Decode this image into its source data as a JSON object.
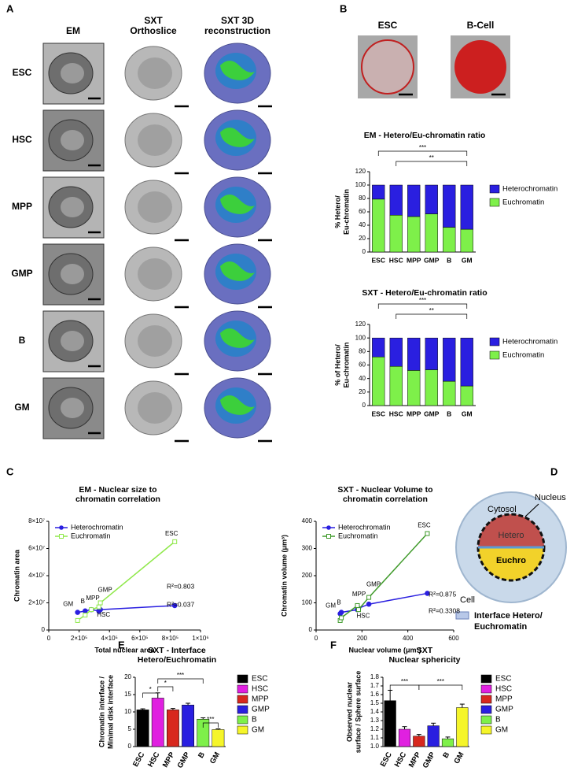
{
  "panels": [
    "A",
    "B",
    "C",
    "D",
    "E",
    "F"
  ],
  "panel_a": {
    "columns": [
      [
        "EM"
      ],
      [
        "SXT",
        "Orthoslice"
      ],
      [
        "SXT 3D",
        "reconstruction"
      ]
    ],
    "rows": [
      "ESC",
      "HSC",
      "MPP",
      "GMP",
      "B",
      "GM"
    ]
  },
  "panel_b_images": [
    "ESC",
    "B-Cell"
  ],
  "diagram": {
    "cytosol": "Cytosol",
    "nucleus": "Nucleus",
    "hetero": "Hetero",
    "euchro": "Euchro",
    "cell": "Cell",
    "interface": [
      "Interface Hetero/",
      "Euchromatin"
    ]
  },
  "chart_data": [
    {
      "type": "stacked_bar",
      "title": [
        "EM - Hetero/Eu-chromatin ratio"
      ],
      "y_label": [
        "% Hetero/",
        "Eu-chromatin"
      ],
      "categories": [
        "ESC",
        "HSC",
        "MPP",
        "GMP",
        "B",
        "GM"
      ],
      "series": [
        {
          "name": "Heterochromatin",
          "color": "#2a1fe0",
          "values": [
            21,
            45,
            47,
            43,
            63,
            66
          ]
        },
        {
          "name": "Euchromatin",
          "color": "#7ef04a",
          "values": [
            79,
            55,
            53,
            57,
            37,
            34
          ]
        }
      ],
      "ylim": [
        0,
        120
      ],
      "yticks": [
        0,
        20,
        40,
        60,
        80,
        100,
        120
      ],
      "annotations": [
        "***",
        "**"
      ]
    },
    {
      "type": "stacked_bar",
      "title": [
        "SXT - Hetero/Eu-chromatin ratio"
      ],
      "y_label": [
        "% of Hetero/",
        "Eu-chromatin"
      ],
      "categories": [
        "ESC",
        "HSC",
        "MPP",
        "GMP",
        "B",
        "GM"
      ],
      "series": [
        {
          "name": "Heterochromatin",
          "color": "#2a1fe0",
          "values": [
            28,
            42,
            48,
            47,
            64,
            71
          ]
        },
        {
          "name": "Euchromatin",
          "color": "#7ef04a",
          "values": [
            72,
            58,
            52,
            53,
            36,
            29
          ]
        }
      ],
      "ylim": [
        0,
        120
      ],
      "yticks": [
        0,
        20,
        40,
        60,
        80,
        100,
        120
      ],
      "annotations": [
        "***",
        "**"
      ]
    },
    {
      "type": "scatter",
      "title": [
        "EM - Nuclear size to",
        "chromatin correlation"
      ],
      "x_label": [
        "Total nuclear area"
      ],
      "y_label": [
        "Chromatin area"
      ],
      "categories": [
        "GM",
        "B",
        "MPP",
        "HSC",
        "GMP",
        "ESC"
      ],
      "series": [
        {
          "name": "Heterochromatin",
          "color": "#2a1fe0",
          "marker": "circle",
          "x": [
            190000,
            240000,
            280000,
            330000,
            340000,
            830000
          ],
          "values": [
            13000000,
            14000000,
            15000000,
            14000000,
            15000000,
            18000000
          ]
        },
        {
          "name": "Euchromatin",
          "color": "#8fe84a",
          "marker": "square",
          "x": [
            190000,
            240000,
            280000,
            330000,
            340000,
            830000
          ],
          "values": [
            7000000,
            11000000,
            15000000,
            17000000,
            20000000,
            65000000
          ]
        }
      ],
      "xlim": [
        0,
        1000000
      ],
      "xticks": [
        0,
        {
          "value": 200000,
          "label": "2×10⁵"
        },
        {
          "value": 400000,
          "label": "4×10⁵"
        },
        {
          "value": 600000,
          "label": "6×10⁵"
        },
        {
          "value": 800000,
          "label": "8×10⁵"
        },
        {
          "value": 1000000,
          "label": "1×10⁶"
        }
      ],
      "ylim": [
        0,
        80000000
      ],
      "yticks": [
        0,
        {
          "value": 20000000,
          "label": "2×10⁷"
        },
        {
          "value": 40000000,
          "label": "4×10⁷"
        },
        {
          "value": 60000000,
          "label": "6×10⁷"
        },
        {
          "value": 80000000,
          "label": "8×10⁷"
        }
      ],
      "annotations": [
        "R²=0.803",
        "R²=0.037"
      ]
    },
    {
      "type": "scatter",
      "title": [
        "SXT - Nuclear Volume to",
        "chromatin correlation"
      ],
      "x_label": [
        "Nuclear volume (μm³)"
      ],
      "y_label": [
        "Chromatin volume (μm³)"
      ],
      "categories": [
        "GM",
        "B",
        "MPP",
        "HSC",
        "GMP",
        "ESC"
      ],
      "series": [
        {
          "name": "Heterochromatin",
          "color": "#2a1fe0",
          "marker": "circle",
          "x": [
            105,
            110,
            180,
            185,
            230,
            485
          ],
          "values": [
            60,
            65,
            75,
            80,
            95,
            135
          ]
        },
        {
          "name": "Euchromatin",
          "color": "#3f9a2a",
          "marker": "square",
          "x": [
            105,
            110,
            180,
            185,
            230,
            485
          ],
          "values": [
            35,
            45,
            90,
            75,
            120,
            355
          ]
        }
      ],
      "xlim": [
        0,
        600
      ],
      "xticks": [
        0,
        200,
        400,
        600
      ],
      "ylim": [
        0,
        400
      ],
      "yticks": [
        0,
        100,
        200,
        300,
        400
      ],
      "annotations": [
        "R²=0.875",
        "R²=0.3308"
      ]
    },
    {
      "type": "bar",
      "title": [
        "SXT - Interface",
        "Hetero/Euchromatin"
      ],
      "y_label": [
        "Chromatin interface /",
        "Minimal disk interface"
      ],
      "categories": [
        "ESC",
        "HSC",
        "MPP",
        "GMP",
        "B",
        "GM"
      ],
      "colors": [
        "#000000",
        "#e020e0",
        "#d8281e",
        "#2a1fe0",
        "#7ef04a",
        "#f5f52a"
      ],
      "values": [
        10.6,
        14,
        10.6,
        12,
        7.9,
        4.9
      ],
      "errors": [
        0.3,
        1.5,
        0.4,
        0.5,
        0.4,
        0.2
      ],
      "ylim": [
        0,
        20
      ],
      "yticks": [
        0,
        5,
        10,
        15,
        20
      ],
      "annotations": [
        "*",
        "*",
        "***",
        "***"
      ]
    },
    {
      "type": "bar",
      "title": [
        "SXT",
        "Nuclear sphericity"
      ],
      "y_label": [
        "Observed nuclear",
        "surface / Sphere surface"
      ],
      "categories": [
        "ESC",
        "HSC",
        "MPP",
        "GMP",
        "B",
        "GM"
      ],
      "colors": [
        "#000000",
        "#e020e0",
        "#d8281e",
        "#2a1fe0",
        "#7ef04a",
        "#f5f52a"
      ],
      "values": [
        1.53,
        1.2,
        1.12,
        1.24,
        1.09,
        1.45
      ],
      "errors": [
        0.12,
        0.03,
        0.02,
        0.03,
        0.02,
        0.04
      ],
      "ylim": [
        1,
        1.8
      ],
      "yticks": [
        {
          "value": 1,
          "label": "1.0"
        },
        1.1,
        1.2,
        1.3,
        1.4,
        1.5,
        1.6,
        1.7,
        1.8
      ],
      "annotations": [
        "***",
        "***"
      ]
    }
  ]
}
